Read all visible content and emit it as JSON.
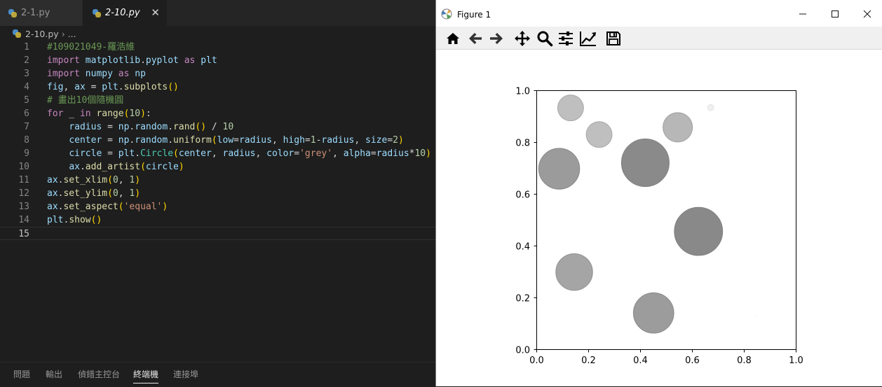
{
  "editor": {
    "tabs": [
      {
        "label": "2-1.py",
        "active": false
      },
      {
        "label": "2-10.py",
        "active": true,
        "close": "✕"
      }
    ],
    "breadcrumb": {
      "file": "2-10.py",
      "sep": "›",
      "rest": "..."
    },
    "active_line": 15,
    "lines": [
      "#109021049-羅浩維",
      "import matplotlib.pyplot as plt",
      "import numpy as np",
      "fig, ax = plt.subplots()",
      "# 畫出10個隨機圓",
      "for _ in range(10):",
      "    radius = np.random.rand() / 10",
      "    center = np.random.uniform(low=radius, high=1-radius, size=2)",
      "    circle = plt.Circle(center, radius, color='grey', alpha=radius*10)",
      "    ax.add_artist(circle)",
      "ax.set_xlim(0, 1)",
      "ax.set_ylim(0, 1)",
      "ax.set_aspect('equal')",
      "plt.show()",
      ""
    ],
    "panel_tabs": [
      {
        "label": "問題",
        "active": false
      },
      {
        "label": "輸出",
        "active": false
      },
      {
        "label": "偵錯主控台",
        "active": false
      },
      {
        "label": "終端機",
        "active": true
      },
      {
        "label": "連接埠",
        "active": false
      }
    ]
  },
  "figure": {
    "title": "Figure 1",
    "window_buttons": [
      "minimize-icon",
      "maximize-icon",
      "close-icon"
    ],
    "toolbar": [
      "home-icon",
      "back-arrow-icon",
      "forward-arrow-icon",
      "pan-move-icon",
      "zoom-icon",
      "configure-subplots-icon",
      "edit-axis-icon",
      "save-icon"
    ]
  },
  "chart_data": {
    "type": "scatter",
    "title": "",
    "xlabel": "",
    "ylabel": "",
    "xlim": [
      0,
      1
    ],
    "ylim": [
      0,
      1
    ],
    "xticks": [
      "0.0",
      "0.2",
      "0.4",
      "0.6",
      "0.8",
      "1.0"
    ],
    "yticks": [
      "0.0",
      "0.2",
      "0.4",
      "0.6",
      "0.8",
      "1.0"
    ],
    "grid": false,
    "color": "#808080",
    "circles": [
      {
        "x": 0.132,
        "y": 0.932,
        "r": 0.05,
        "alpha": 0.5
      },
      {
        "x": 0.242,
        "y": 0.829,
        "r": 0.05,
        "alpha": 0.5
      },
      {
        "x": 0.545,
        "y": 0.857,
        "r": 0.057,
        "alpha": 0.57
      },
      {
        "x": 0.672,
        "y": 0.933,
        "r": 0.012,
        "alpha": 0.12
      },
      {
        "x": 0.42,
        "y": 0.72,
        "r": 0.092,
        "alpha": 0.92
      },
      {
        "x": 0.088,
        "y": 0.697,
        "r": 0.079,
        "alpha": 0.79
      },
      {
        "x": 0.625,
        "y": 0.455,
        "r": 0.093,
        "alpha": 0.93
      },
      {
        "x": 0.146,
        "y": 0.298,
        "r": 0.071,
        "alpha": 0.71
      },
      {
        "x": 0.452,
        "y": 0.14,
        "r": 0.078,
        "alpha": 0.78
      },
      {
        "x": 0.845,
        "y": 0.13,
        "r": 0.002,
        "alpha": 0.02
      }
    ]
  }
}
